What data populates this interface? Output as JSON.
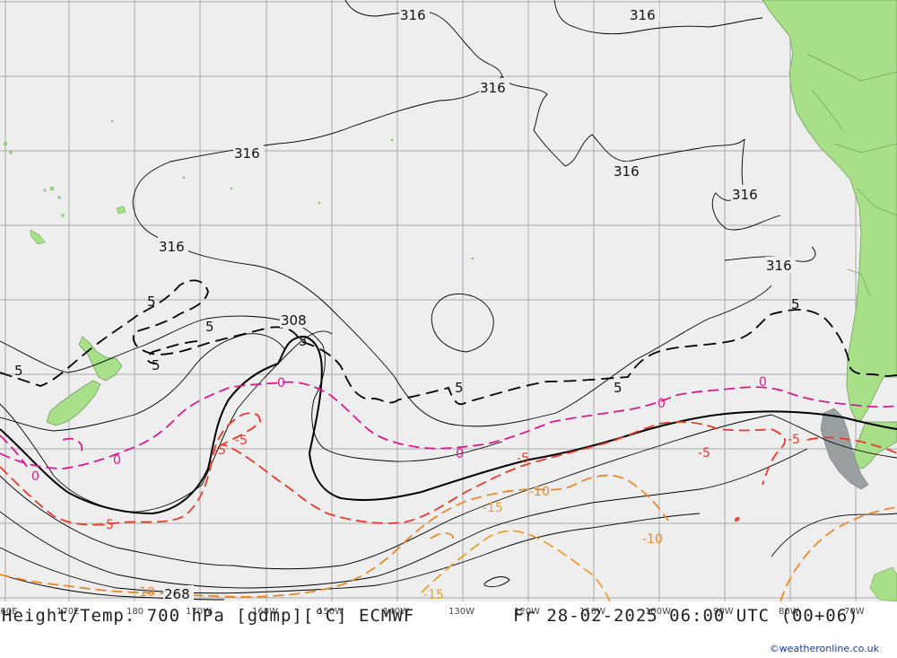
{
  "map": {
    "title": "Height/Temp. 700 hPa [gdmp][°C] ECMWF",
    "valid_time": "Fr 28-02-2025 06:00 UTC (00+06)",
    "credit": "©weatheronline.co.uk",
    "colors": {
      "sea": "#eeeeee",
      "land": "#a8e08a",
      "grid": "#a0a0a0",
      "height": "#000000",
      "temp_0": "#d81a8f",
      "temp_-5": "#e83a2a",
      "temp_-10": "#e88a2a",
      "temp_-15": "#e8a030"
    },
    "longitudes": [
      "160E",
      "170E",
      "180",
      "170W",
      "160W",
      "150W",
      "140W",
      "130W",
      "120W",
      "110W",
      "100W",
      "90W",
      "80W",
      "70W"
    ],
    "height_labels": [
      "316",
      "316",
      "316",
      "316",
      "316",
      "316",
      "316",
      "316",
      "308",
      "268"
    ],
    "temp_labels": {
      "dash5": [
        "5",
        "5",
        "5",
        "5",
        "5",
        "5",
        "5"
      ],
      "zero": [
        "0",
        "0",
        "0",
        "0",
        "0",
        "0",
        "0"
      ],
      "m5": [
        "-5",
        "-5",
        "-5",
        "-5",
        "-5",
        "-5",
        "-5"
      ],
      "m10": [
        "-10",
        "-10",
        "-10"
      ],
      "m15": [
        "-15",
        "-15"
      ]
    }
  }
}
